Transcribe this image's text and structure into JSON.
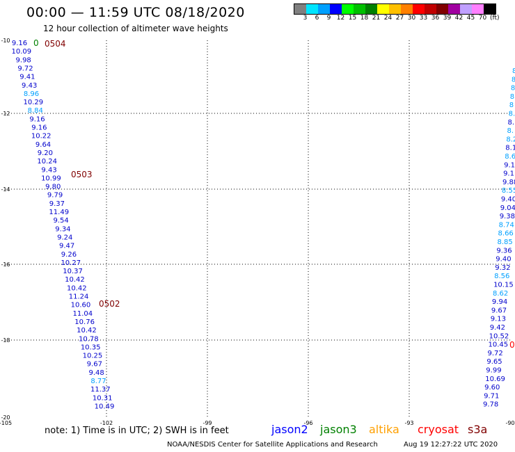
{
  "header": {
    "title": "00:00 — 11:59 UTC 08/18/2020",
    "subtitle": "12 hour collection of altimeter wave heights"
  },
  "legend": {
    "unit": "(ft)",
    "labels": [
      "3",
      "6",
      "9",
      "12",
      "15",
      "18",
      "21",
      "24",
      "27",
      "30",
      "33",
      "36",
      "39",
      "42",
      "45",
      "70"
    ],
    "colors": [
      "#808080",
      "#00e5ff",
      "#00a0ff",
      "#0000ff",
      "#00ff00",
      "#00c000",
      "#008000",
      "#ffff00",
      "#ffc000",
      "#ff8000",
      "#ff0000",
      "#c00000",
      "#800000",
      "#a000a0",
      "#c0a0ff",
      "#ff80ff",
      "#000000"
    ]
  },
  "axes": {
    "lon_labels": [
      "-105",
      "-102",
      "-99",
      "-96",
      "-93",
      "-90"
    ],
    "lat_labels": [
      "-10",
      "-12",
      "-14",
      "-16",
      "-18",
      "-20"
    ]
  },
  "tracks": [
    {
      "passes": [
        "0504",
        "0503",
        "0502"
      ],
      "pass_color": "#800000",
      "points": [
        [
          "9.16",
          "#0000cc"
        ],
        [
          "10.09",
          "#0000cc"
        ],
        [
          "9.98",
          "#0000cc"
        ],
        [
          "9.72",
          "#0000cc"
        ],
        [
          "9.41",
          "#0000cc"
        ],
        [
          "9.43",
          "#0000cc"
        ],
        [
          "8.96",
          "#00a0ff"
        ],
        [
          "10.29",
          "#0000cc"
        ],
        [
          "8.84",
          "#00a0ff"
        ],
        [
          "9.16",
          "#0000cc"
        ],
        [
          "9.16",
          "#0000cc"
        ],
        [
          "10.22",
          "#0000cc"
        ],
        [
          "9.64",
          "#0000cc"
        ],
        [
          "9.20",
          "#0000cc"
        ],
        [
          "10.24",
          "#0000cc"
        ],
        [
          "9.43",
          "#0000cc"
        ],
        [
          "10.99",
          "#0000cc"
        ],
        [
          "9.80",
          "#0000cc"
        ],
        [
          "9.79",
          "#0000cc"
        ],
        [
          "9.37",
          "#0000cc"
        ],
        [
          "11.49",
          "#0000cc"
        ],
        [
          "9.54",
          "#0000cc"
        ],
        [
          "9.34",
          "#0000cc"
        ],
        [
          "9.24",
          "#0000cc"
        ],
        [
          "9.47",
          "#0000cc"
        ],
        [
          "9.26",
          "#0000cc"
        ],
        [
          "10.27",
          "#0000cc"
        ],
        [
          "10.37",
          "#0000cc"
        ],
        [
          "10.42",
          "#0000cc"
        ],
        [
          "10.42",
          "#0000cc"
        ],
        [
          "11.24",
          "#0000cc"
        ],
        [
          "10.60",
          "#0000cc"
        ],
        [
          "11.04",
          "#0000cc"
        ],
        [
          "10.76",
          "#0000cc"
        ],
        [
          "10.42",
          "#0000cc"
        ],
        [
          "10.78",
          "#0000cc"
        ],
        [
          "10.35",
          "#0000cc"
        ],
        [
          "10.25",
          "#0000cc"
        ],
        [
          "9.67",
          "#0000cc"
        ],
        [
          "9.48",
          "#0000cc"
        ],
        [
          "8.77",
          "#00a0ff"
        ],
        [
          "11.37",
          "#0000cc"
        ],
        [
          "10.31",
          "#0000cc"
        ],
        [
          "10.49",
          "#0000cc"
        ]
      ]
    },
    {
      "passes": [
        "0"
      ],
      "pass_color": "#ff0000",
      "points": [
        [
          "8",
          "#00a0ff"
        ],
        [
          "8",
          "#00a0ff"
        ],
        [
          "8",
          "#00a0ff"
        ],
        [
          "8",
          "#00a0ff"
        ],
        [
          "8",
          "#00a0ff"
        ],
        [
          "8.",
          "#00a0ff"
        ],
        [
          "8.",
          "#0000cc"
        ],
        [
          "8.",
          "#00a0ff"
        ],
        [
          "8.2",
          "#00a0ff"
        ],
        [
          "8.1",
          "#0000cc"
        ],
        [
          "8.6",
          "#00a0ff"
        ],
        [
          "9.1",
          "#0000cc"
        ],
        [
          "9.1",
          "#0000cc"
        ],
        [
          "9.88",
          "#0000cc"
        ],
        [
          "8.55",
          "#00a0ff"
        ],
        [
          "9.40",
          "#0000cc"
        ],
        [
          "9.04",
          "#0000cc"
        ],
        [
          "9.38",
          "#0000cc"
        ],
        [
          "8.74",
          "#00a0ff"
        ],
        [
          "8.66",
          "#00a0ff"
        ],
        [
          "8.85",
          "#00a0ff"
        ],
        [
          "9.36",
          "#0000cc"
        ],
        [
          "9.40",
          "#0000cc"
        ],
        [
          "9.32",
          "#0000cc"
        ],
        [
          "8.56",
          "#00a0ff"
        ],
        [
          "10.15",
          "#0000cc"
        ],
        [
          "8.62",
          "#00a0ff"
        ],
        [
          "9.94",
          "#0000cc"
        ],
        [
          "9.67",
          "#0000cc"
        ],
        [
          "9.13",
          "#0000cc"
        ],
        [
          "9.42",
          "#0000cc"
        ],
        [
          "10.52",
          "#0000cc"
        ],
        [
          "10.45",
          "#0000cc"
        ],
        [
          "9.72",
          "#0000cc"
        ],
        [
          "9.65",
          "#0000cc"
        ],
        [
          "9.99",
          "#0000cc"
        ],
        [
          "10.69",
          "#0000cc"
        ],
        [
          "9.60",
          "#0000cc"
        ],
        [
          "9.71",
          "#0000cc"
        ],
        [
          "9.78",
          "#0000cc"
        ]
      ]
    }
  ],
  "green_pass_label": "0",
  "footer": {
    "note": "note: 1) Time is in UTC; 2) SWH is in feet",
    "satellites": [
      {
        "name": "jason2",
        "color": "#0000ff"
      },
      {
        "name": "jason3",
        "color": "#008000"
      },
      {
        "name": "altika",
        "color": "#ffa000"
      },
      {
        "name": "cryosat",
        "color": "#ff0000"
      },
      {
        "name": "s3a",
        "color": "#800000"
      }
    ],
    "credit": "NOAA/NESDIS Center for Satellite Applications and Research",
    "timestamp": "Aug 19 12:27:22 UTC 2020"
  }
}
